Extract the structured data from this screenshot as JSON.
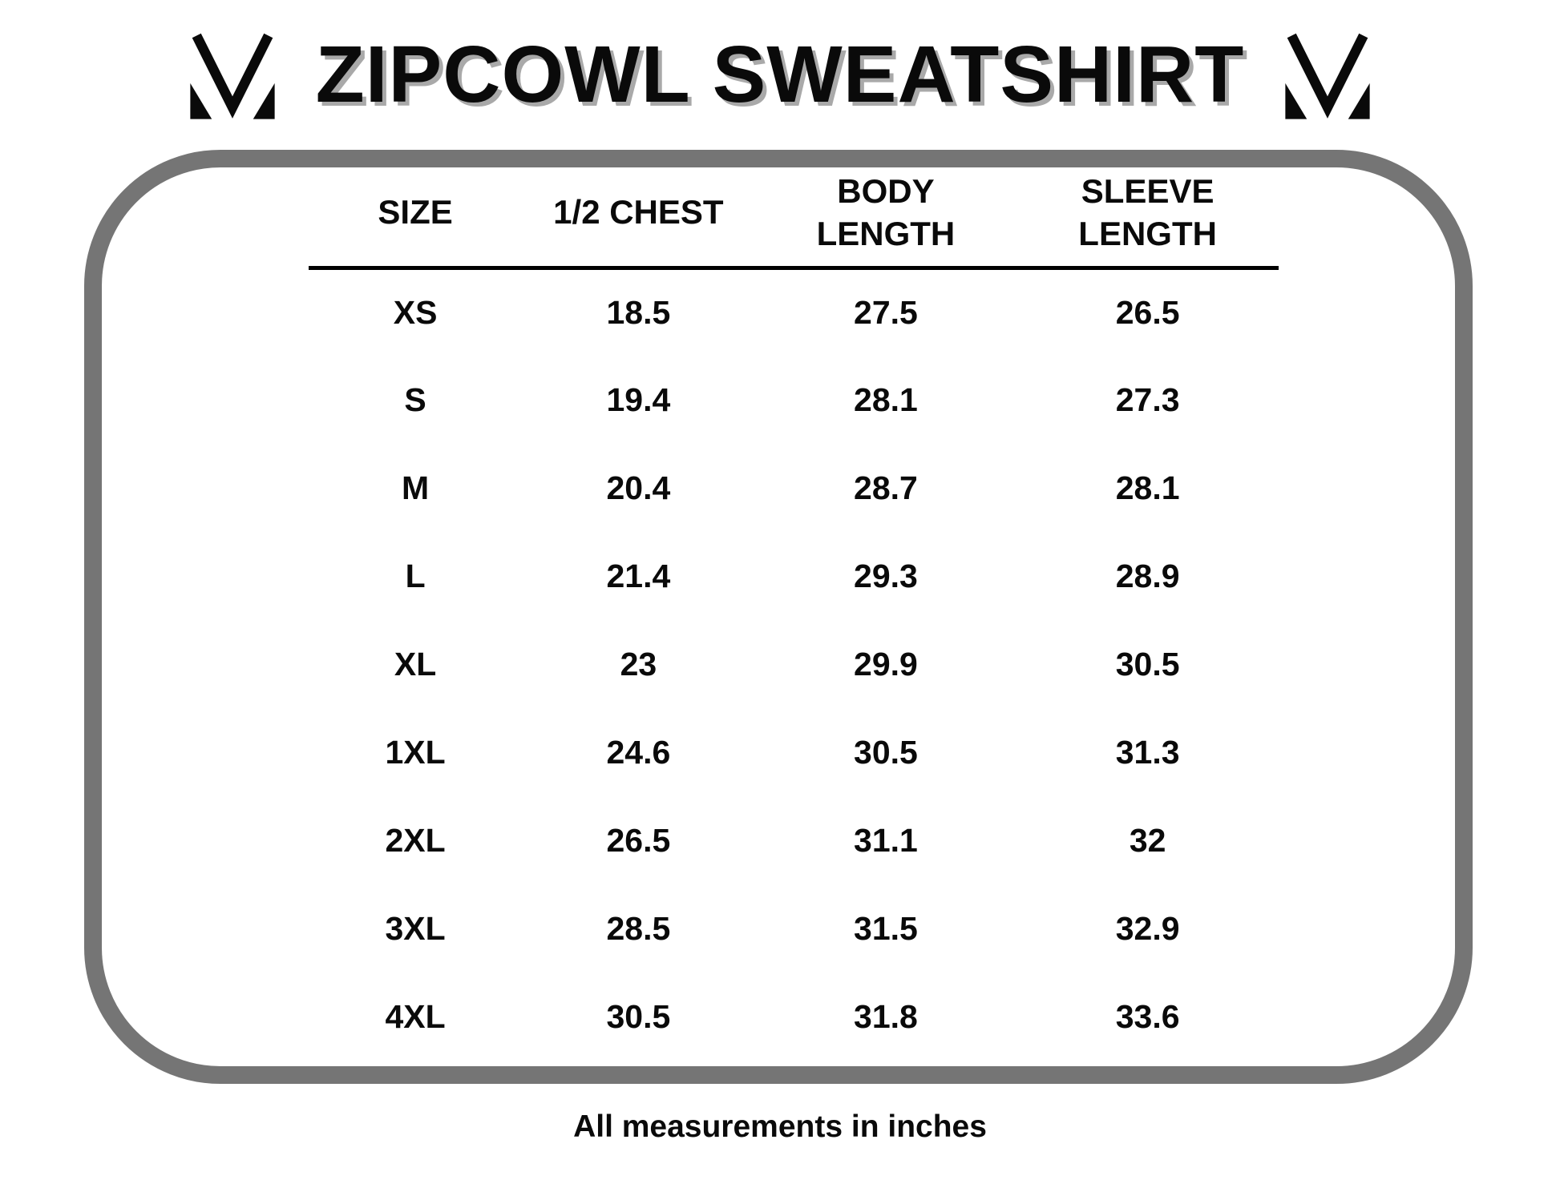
{
  "header": {
    "title": "ZIPCOWL SWEATSHIRT"
  },
  "icons": {
    "brand_logo": "mm-monogram-logo"
  },
  "chart_data": {
    "type": "table",
    "title": "ZIPCOWL SWEATSHIRT",
    "columns": [
      "SIZE",
      "1/2 CHEST",
      "BODY\nLENGTH",
      "SLEEVE\nLENGTH"
    ],
    "rows": [
      [
        "XS",
        "18.5",
        "27.5",
        "26.5"
      ],
      [
        "S",
        "19.4",
        "28.1",
        "27.3"
      ],
      [
        "M",
        "20.4",
        "28.7",
        "28.1"
      ],
      [
        "L",
        "21.4",
        "29.3",
        "28.9"
      ],
      [
        "XL",
        "23",
        "29.9",
        "30.5"
      ],
      [
        "1XL",
        "24.6",
        "30.5",
        "31.3"
      ],
      [
        "2XL",
        "26.5",
        "31.1",
        "32"
      ],
      [
        "3XL",
        "28.5",
        "31.5",
        "32.9"
      ],
      [
        "4XL",
        "30.5",
        "31.8",
        "33.6"
      ]
    ],
    "note": "All measurements in inches"
  },
  "footer": {
    "note": "All measurements in inches"
  },
  "colors": {
    "ink": "#0a0a0a",
    "border_gray": "#757575",
    "title_shadow": "#a9a9a9"
  }
}
